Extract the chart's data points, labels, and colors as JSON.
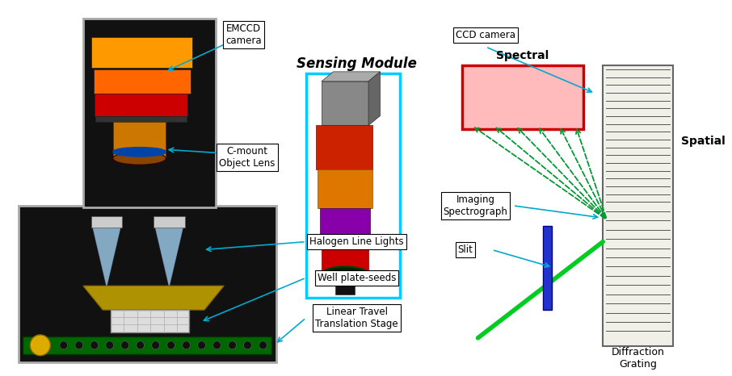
{
  "bg_color": "#ffffff",
  "labels": {
    "emccd": "EMCCD\ncamera",
    "cmount": "C-mount\nObject Lens",
    "sensing": "Sensing Module",
    "ccd": "CCD camera",
    "imaging": "Imaging\nSpectrograph",
    "slit": "Slit",
    "halogen": "Halogen Line Lights",
    "wellplate": "Well plate-seeds",
    "linear": "Linear Travel\nTranslation Stage",
    "spectral": "Spectral",
    "spatial": "Spatial",
    "diffraction": "Diffraction\nGrating"
  },
  "cyan": "#00aacc",
  "green": "#00bb33",
  "dark_green": "#009933"
}
